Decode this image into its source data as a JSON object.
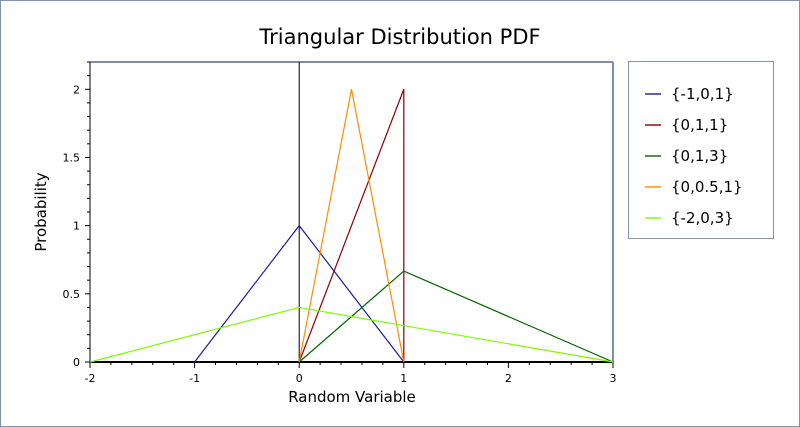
{
  "chart_data": {
    "type": "line",
    "title": "Triangular Distribution PDF",
    "xlabel": "Random Variable",
    "ylabel": "Probability",
    "xlim": [
      -2,
      3
    ],
    "ylim": [
      0,
      2.2
    ],
    "xticks": [
      "-2",
      "-1",
      "0",
      "1",
      "2",
      "3"
    ],
    "yticks": [
      "0",
      "0.5",
      "1",
      "1.5",
      "2"
    ],
    "legend_position": "right",
    "series": [
      {
        "name": "{-1,0,1}",
        "color": "#1c1c9c",
        "points": [
          [
            -1,
            0
          ],
          [
            0,
            1
          ],
          [
            1,
            0
          ]
        ]
      },
      {
        "name": "{0,1,1}",
        "color": "#8b0000",
        "points": [
          [
            0,
            0
          ],
          [
            1,
            2
          ],
          [
            1,
            0
          ]
        ]
      },
      {
        "name": "{0,1,3}",
        "color": "#006400",
        "points": [
          [
            0,
            0
          ],
          [
            1,
            0.6667
          ],
          [
            3,
            0
          ]
        ]
      },
      {
        "name": "{0,0.5,1}",
        "color": "#ff8c00",
        "points": [
          [
            0,
            0
          ],
          [
            0.5,
            2
          ],
          [
            1,
            0
          ]
        ]
      },
      {
        "name": "{-2,0,3}",
        "color": "#7cfc00",
        "points": [
          [
            -2,
            0
          ],
          [
            0,
            0.4
          ],
          [
            3,
            0
          ]
        ]
      }
    ]
  }
}
